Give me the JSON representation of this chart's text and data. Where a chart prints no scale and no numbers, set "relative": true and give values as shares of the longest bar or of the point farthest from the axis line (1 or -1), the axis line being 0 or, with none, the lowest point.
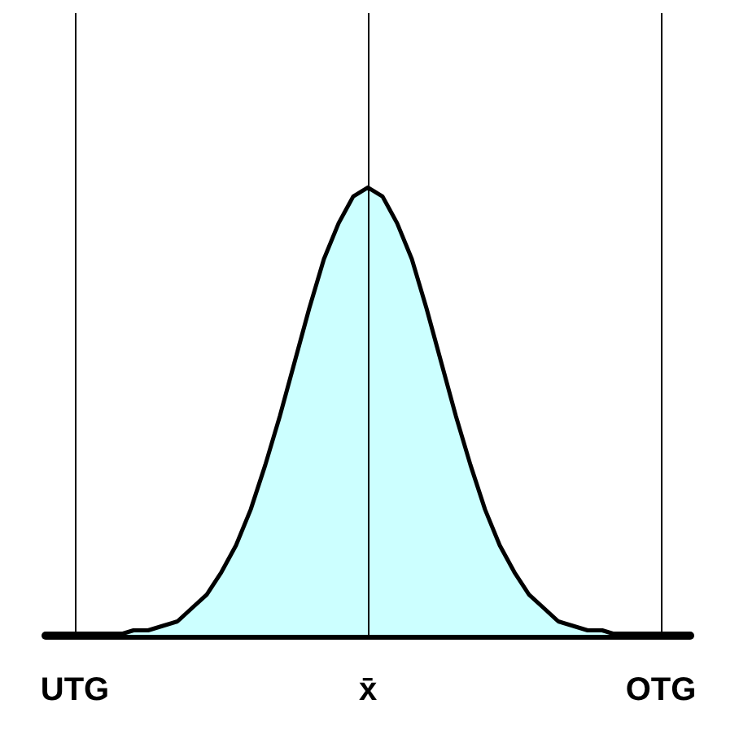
{
  "chart_data": {
    "type": "area",
    "relative": true,
    "categories": [
      null,
      null,
      "UTG",
      null,
      null,
      null,
      null,
      null,
      null,
      null,
      null,
      null,
      null,
      null,
      null,
      null,
      null,
      null,
      null,
      null,
      null,
      null,
      "x̄",
      null,
      null,
      null,
      null,
      null,
      null,
      null,
      null,
      null,
      null,
      null,
      null,
      null,
      null,
      null,
      null,
      null,
      null,
      null,
      "OTG",
      null,
      null
    ],
    "series": [
      {
        "color": "#ccffff",
        "values": [
          null,
          null,
          null,
          null,
          null,
          0.0,
          0.01,
          0.01,
          0.02,
          0.03,
          0.06,
          0.09,
          0.14,
          0.2,
          0.28,
          0.38,
          0.49,
          0.61,
          0.73,
          0.84,
          0.92,
          0.98,
          1,
          0.98,
          0.92,
          0.84,
          0.73,
          0.61,
          0.49,
          0.38,
          0.28,
          0.2,
          0.14,
          0.09,
          0.06,
          0.03,
          0.02,
          0.01,
          0.01,
          0.0,
          null,
          null,
          null,
          null,
          null
        ]
      }
    ],
    "marker": "none",
    "line_style": "solid",
    "ref_lines": [
      {
        "axis": "x",
        "value": "UTG"
      },
      {
        "axis": "x",
        "value": "x̄"
      },
      {
        "axis": "x",
        "value": "OTG"
      }
    ]
  }
}
